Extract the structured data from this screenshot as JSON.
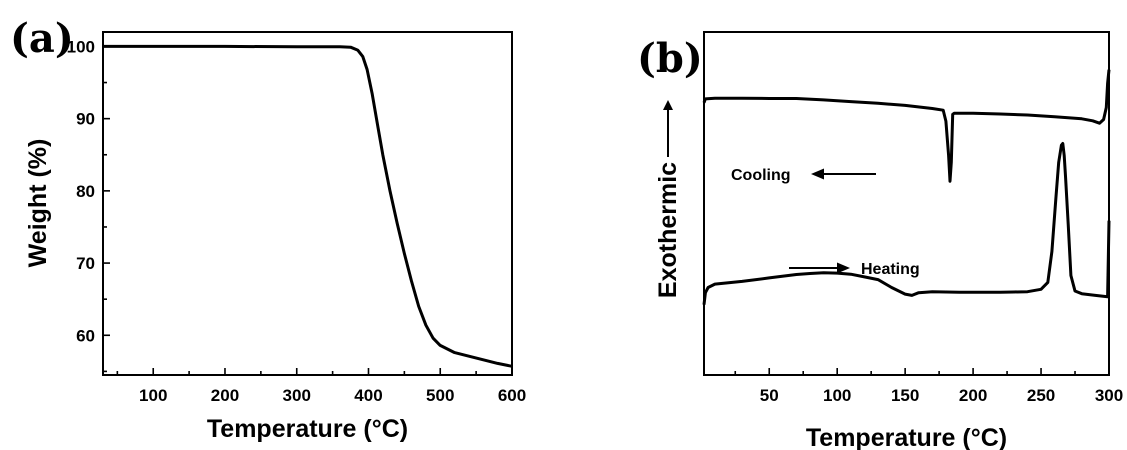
{
  "chart_data": [
    {
      "panel_label": "(a)",
      "type": "line",
      "xlabel": "Temperature (°C)",
      "ylabel": "Weight (%)",
      "xlim": [
        30,
        600
      ],
      "ylim": [
        54.5,
        102
      ],
      "xticks": [
        100,
        200,
        300,
        400,
        500,
        600
      ],
      "yticks": [
        60,
        70,
        80,
        90,
        100
      ],
      "xminor": [
        50,
        150,
        250,
        350,
        450,
        550
      ],
      "yminor": [
        55,
        65,
        75,
        85,
        95
      ],
      "series": [
        {
          "x": [
            30,
            100,
            200,
            300,
            360,
            375,
            385,
            392,
            398,
            405,
            412,
            420,
            430,
            440,
            450,
            460,
            470,
            480,
            490,
            500,
            520,
            540,
            560,
            580,
            600
          ],
          "y": [
            100,
            100,
            100,
            99.95,
            99.95,
            99.9,
            99.5,
            98.6,
            96.8,
            93.5,
            89.5,
            85,
            80,
            75.5,
            71.3,
            67.5,
            64,
            61.4,
            59.6,
            58.6,
            57.6,
            57.1,
            56.6,
            56.1,
            55.7
          ]
        }
      ]
    },
    {
      "panel_label": "(b)",
      "type": "line",
      "xlabel": "Temperature (°C)",
      "ylabel": "Exothermic",
      "xlim": [
        2,
        300
      ],
      "ylim": [
        0,
        100
      ],
      "xticks": [
        50,
        100,
        150,
        200,
        250,
        300
      ],
      "xminor": [
        25,
        75,
        125,
        175,
        225,
        275
      ],
      "annotations": [
        {
          "text": "Cooling",
          "arrow": "left"
        },
        {
          "text": "Heating",
          "arrow": "right"
        }
      ],
      "series": [
        {
          "name": "Cooling",
          "x": [
            2,
            3,
            10,
            30,
            50,
            70,
            90,
            110,
            130,
            150,
            170,
            178,
            180,
            182,
            183,
            184,
            185,
            186,
            200,
            220,
            240,
            260,
            280,
            288,
            293,
            296,
            298,
            299,
            300
          ],
          "y": [
            79.4,
            80.5,
            80.7,
            80.7,
            80.6,
            80.6,
            80.2,
            79.7,
            79.2,
            78.6,
            77.7,
            77.2,
            74,
            64,
            56.5,
            62,
            76,
            76.3,
            76.3,
            76.1,
            75.8,
            75.3,
            74.7,
            74.1,
            73.4,
            74.5,
            78,
            85,
            89
          ]
        },
        {
          "name": "Heating",
          "x": [
            2,
            3,
            5,
            10,
            30,
            50,
            70,
            80,
            90,
            100,
            110,
            120,
            130,
            140,
            150,
            155,
            160,
            170,
            180,
            190,
            200,
            210,
            220,
            230,
            240,
            250,
            255,
            258,
            261,
            263,
            265,
            266,
            267,
            268,
            270,
            272,
            275,
            280,
            290,
            299,
            300
          ],
          "y": [
            20.5,
            24,
            25.5,
            26.5,
            27.3,
            28.3,
            29.3,
            29.6,
            29.8,
            29.7,
            29.4,
            28.6,
            27.8,
            25.5,
            23.6,
            23.2,
            24,
            24.3,
            24.2,
            24.1,
            24.1,
            24.1,
            24.1,
            24.2,
            24.3,
            25,
            27,
            36,
            52,
            62,
            67,
            67.5,
            64,
            58,
            44,
            29,
            24.5,
            23.7,
            23.2,
            22.8,
            45
          ]
        }
      ]
    }
  ]
}
